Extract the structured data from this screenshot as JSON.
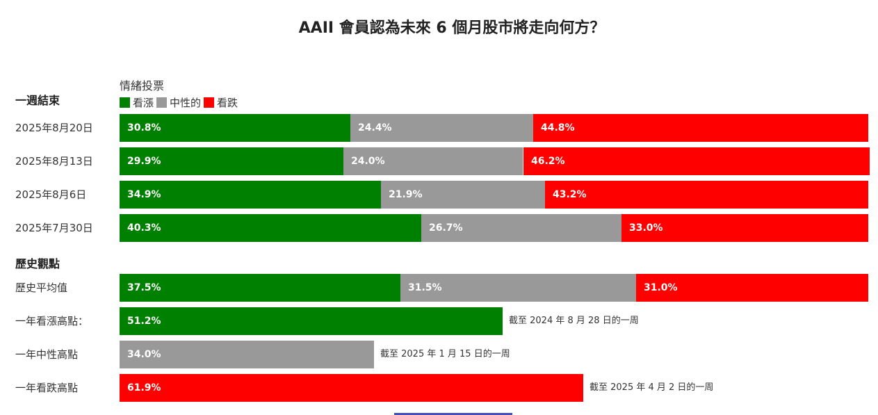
{
  "title": "AAII 會員認為未來 6 個月股市將走向何方？",
  "legend": {
    "title": "情緒投票",
    "items": [
      {
        "label": "看漲",
        "color": "#008000"
      },
      {
        "label": "中性的",
        "color": "#999999"
      },
      {
        "label": "看跌",
        "color": "#ff0000"
      }
    ]
  },
  "sections": {
    "weekly": "一週結束",
    "history": "歷史觀點"
  },
  "chart_data": {
    "type": "bar",
    "stacked": true,
    "series_names": [
      "看漲",
      "中性的",
      "看跌"
    ],
    "colors": [
      "#008000",
      "#999999",
      "#ff0000"
    ],
    "weekly_rows": [
      {
        "label": "2025年8月20日",
        "values": [
          30.8,
          24.4,
          44.8
        ],
        "texts": [
          "30.8%",
          "24.4%",
          "44.8%"
        ]
      },
      {
        "label": "2025年8月13日",
        "values": [
          29.9,
          24.0,
          46.2
        ],
        "texts": [
          "29.9%",
          "24.0%",
          "46.2%"
        ]
      },
      {
        "label": "2025年8月6日",
        "values": [
          34.9,
          21.9,
          43.2
        ],
        "texts": [
          "34.9%",
          "21.9%",
          "43.2%"
        ]
      },
      {
        "label": "2025年7月30日",
        "values": [
          40.3,
          26.7,
          33.0
        ],
        "texts": [
          "40.3%",
          "26.7%",
          "33.0%"
        ]
      }
    ],
    "history_rows": [
      {
        "label": "歷史平均值",
        "values": [
          37.5,
          31.5,
          31.0
        ],
        "texts": [
          "37.5%",
          "31.5%",
          "31.0%"
        ],
        "note": ""
      },
      {
        "label": "一年看漲高點：",
        "values": [
          51.2,
          0,
          0
        ],
        "texts": [
          "51.2%",
          "",
          ""
        ],
        "note": "截至 2024 年 8 月 28 日的一周"
      },
      {
        "label": "一年中性高點",
        "values": [
          0,
          34.0,
          0
        ],
        "texts": [
          "",
          "34.0%",
          ""
        ],
        "note": "截至 2025 年 1 月 15 日的一周"
      },
      {
        "label": "一年看跌高點",
        "values": [
          0,
          0,
          61.9
        ],
        "texts": [
          "",
          "",
          "61.9%"
        ],
        "note": "截至 2025 年 4 月 2 日的一周"
      }
    ],
    "xlim": [
      0,
      100
    ]
  }
}
